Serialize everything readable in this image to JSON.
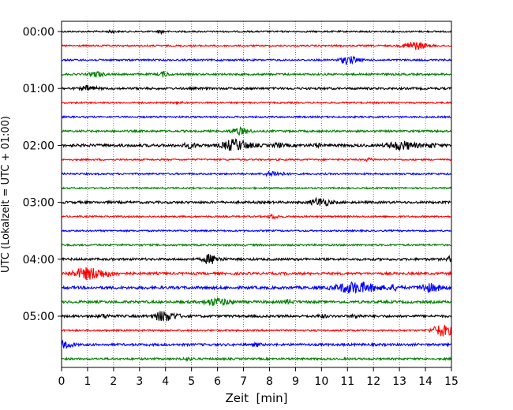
{
  "chart_data": {
    "type": "line",
    "subtype": "helicorder seismogram",
    "xlabel": "Zeit  [min]",
    "ylabel": "UTC (Lokalzeit = UTC + 01:00)",
    "xlim": [
      0,
      15
    ],
    "x_ticks": [
      "0",
      "1",
      "2",
      "3",
      "4",
      "5",
      "6",
      "7",
      "8",
      "9",
      "10",
      "11",
      "12",
      "13",
      "14",
      "15"
    ],
    "vertical_grid": "dotted, every minute",
    "line_interval_minutes": 15,
    "y_ticks": [
      "00:00",
      "01:00",
      "02:00",
      "03:00",
      "04:00",
      "05:00"
    ],
    "color_cycle": [
      "#000000",
      "#ff0000",
      "#0000ff",
      "#008000"
    ],
    "traces": [
      {
        "start": "00:00",
        "noise": 0.2,
        "events": [
          {
            "t": 1.9,
            "a": 0.35,
            "w": 0.15
          },
          {
            "t": 3.8,
            "a": 0.35,
            "w": 0.15
          }
        ]
      },
      {
        "start": "00:15",
        "noise": 0.2,
        "events": [
          {
            "t": 13.5,
            "a": 1.0,
            "w": 0.5
          }
        ]
      },
      {
        "start": "00:30",
        "noise": 0.22,
        "events": [
          {
            "t": 11.0,
            "a": 0.9,
            "w": 0.4
          }
        ]
      },
      {
        "start": "00:45",
        "noise": 0.25,
        "events": [
          {
            "t": 1.3,
            "a": 0.6,
            "w": 0.3
          },
          {
            "t": 3.9,
            "a": 0.6,
            "w": 0.2
          }
        ]
      },
      {
        "start": "01:00",
        "noise": 0.28,
        "events": [
          {
            "t": 1.0,
            "a": 0.6,
            "w": 0.3
          }
        ]
      },
      {
        "start": "01:15",
        "noise": 0.2,
        "events": [
          {
            "t": 4.5,
            "a": 0.3,
            "w": 0.15
          }
        ]
      },
      {
        "start": "01:30",
        "noise": 0.2,
        "events": []
      },
      {
        "start": "01:45",
        "noise": 0.25,
        "events": [
          {
            "t": 6.8,
            "a": 0.8,
            "w": 0.4
          }
        ]
      },
      {
        "start": "02:00",
        "noise": 0.35,
        "events": [
          {
            "t": 4.9,
            "a": 0.5,
            "w": 0.3
          },
          {
            "t": 6.6,
            "a": 1.3,
            "w": 0.6
          },
          {
            "t": 8.3,
            "a": 0.5,
            "w": 0.2
          },
          {
            "t": 9.8,
            "a": 0.4,
            "w": 0.15
          },
          {
            "t": 13.0,
            "a": 1.0,
            "w": 0.6
          },
          {
            "t": 14.2,
            "a": 0.4,
            "w": 0.2
          }
        ]
      },
      {
        "start": "02:15",
        "noise": 0.2,
        "events": [
          {
            "t": 11.8,
            "a": 0.3,
            "w": 0.2
          }
        ]
      },
      {
        "start": "02:30",
        "noise": 0.22,
        "events": [
          {
            "t": 8.1,
            "a": 0.6,
            "w": 0.4
          }
        ]
      },
      {
        "start": "02:45",
        "noise": 0.2,
        "events": []
      },
      {
        "start": "03:00",
        "noise": 0.3,
        "events": [
          {
            "t": 9.9,
            "a": 1.0,
            "w": 0.4
          }
        ]
      },
      {
        "start": "03:15",
        "noise": 0.2,
        "events": [
          {
            "t": 8.1,
            "a": 0.5,
            "w": 0.25
          }
        ]
      },
      {
        "start": "03:30",
        "noise": 0.2,
        "events": []
      },
      {
        "start": "03:45",
        "noise": 0.22,
        "events": []
      },
      {
        "start": "04:00",
        "noise": 0.3,
        "events": [
          {
            "t": 5.7,
            "a": 1.1,
            "w": 0.35
          },
          {
            "t": 14.9,
            "a": 0.6,
            "w": 0.1
          }
        ]
      },
      {
        "start": "04:15",
        "noise": 0.3,
        "events": [
          {
            "t": 1.0,
            "a": 1.4,
            "w": 0.8
          }
        ]
      },
      {
        "start": "04:30",
        "noise": 0.35,
        "events": [
          {
            "t": 11.2,
            "a": 1.3,
            "w": 0.9
          },
          {
            "t": 14.1,
            "a": 0.9,
            "w": 0.5
          },
          {
            "t": 12.7,
            "a": 0.5,
            "w": 0.3
          }
        ]
      },
      {
        "start": "04:45",
        "noise": 0.32,
        "events": [
          {
            "t": 5.9,
            "a": 0.8,
            "w": 0.6
          },
          {
            "t": 8.7,
            "a": 0.45,
            "w": 0.2
          }
        ]
      },
      {
        "start": "05:00",
        "noise": 0.3,
        "events": [
          {
            "t": 3.9,
            "a": 1.2,
            "w": 0.5
          },
          {
            "t": 1.6,
            "a": 0.35,
            "w": 0.25
          },
          {
            "t": 10.0,
            "a": 0.35,
            "w": 0.2
          },
          {
            "t": 11.3,
            "a": 0.4,
            "w": 0.2
          }
        ]
      },
      {
        "start": "05:15",
        "noise": 0.22,
        "events": [
          {
            "t": 14.6,
            "a": 1.4,
            "w": 0.5
          }
        ]
      },
      {
        "start": "05:30",
        "noise": 0.3,
        "events": [
          {
            "t": 0.1,
            "a": 0.9,
            "w": 0.3
          },
          {
            "t": 7.5,
            "a": 0.35,
            "w": 0.15
          }
        ]
      },
      {
        "start": "05:45",
        "noise": 0.25,
        "events": [
          {
            "t": 4.8,
            "a": 0.25,
            "w": 0.3
          }
        ]
      }
    ]
  }
}
